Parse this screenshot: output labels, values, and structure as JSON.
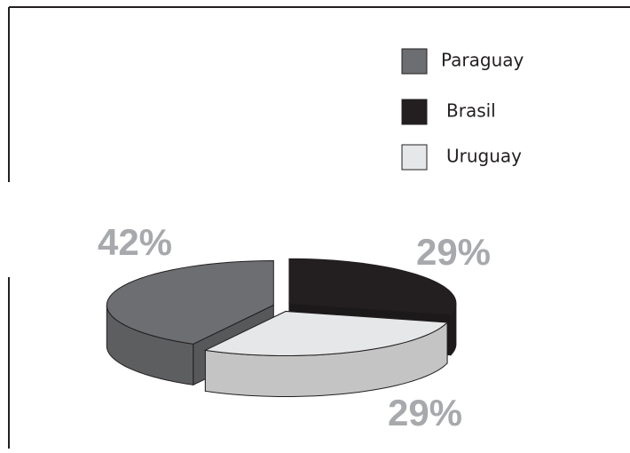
{
  "chart_data": {
    "type": "pie3d",
    "categories": [
      "Paraguay",
      "Brasil",
      "Uruguay"
    ],
    "values": [
      42,
      29,
      29
    ],
    "value_labels": [
      "42%",
      "29%",
      "29%"
    ],
    "colors": [
      "#6d6e71",
      "#231f20",
      "#e6e7e8"
    ],
    "legend": "top-right"
  }
}
